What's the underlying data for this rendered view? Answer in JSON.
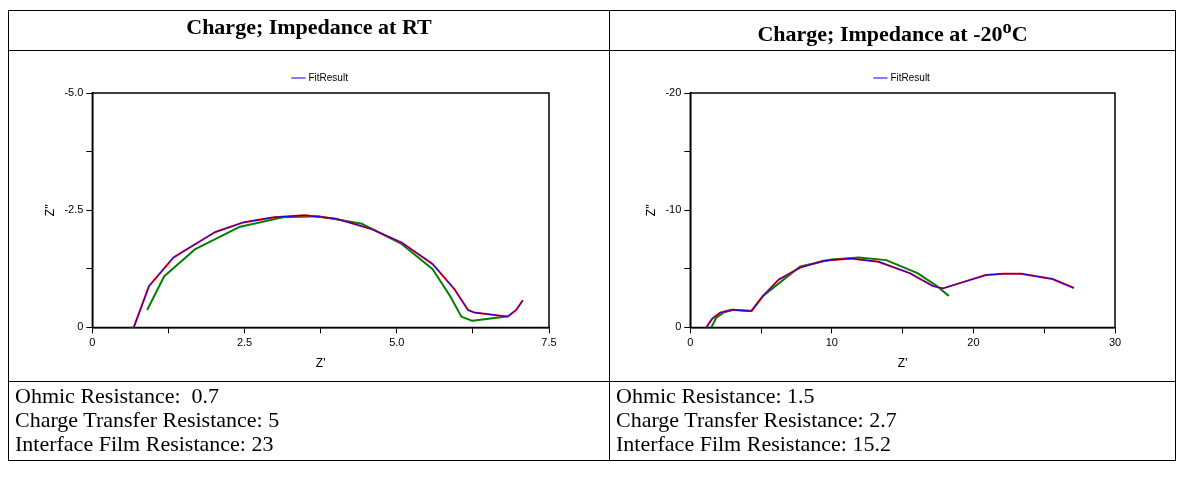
{
  "chart_data": [
    {
      "type": "line",
      "title": "Charge; Impedance at RT",
      "xlabel": "Z'",
      "ylabel": "Z''",
      "legend": "top",
      "marker": "none",
      "line_style": "solid",
      "xlim": [
        0,
        7.5
      ],
      "xticks": [
        0,
        {
          "value": 1.25,
          "label": null
        },
        2.5,
        {
          "value": 3.75,
          "label": null
        },
        {
          "value": 5,
          "label": "5.0"
        },
        {
          "value": 6.25,
          "label": null
        },
        7.5
      ],
      "ylim": [
        0,
        -5
      ],
      "yticks": [
        0,
        {
          "value": -1.25,
          "label": null
        },
        -2.5,
        {
          "value": -3.75,
          "label": null
        },
        {
          "value": -5,
          "label": "-5.0"
        }
      ],
      "series": [
        {
          "color": "#ff0000",
          "x": [
            0.68,
            0.93,
            1.33,
            2.01,
            2.48,
            2.99,
            3.49,
            4.0,
            4.58,
            5.08,
            5.59,
            5.95,
            6.17,
            6.27,
            6.82,
            6.96,
            7.07
          ],
          "values": [
            0,
            -0.88,
            -1.49,
            -2.03,
            -2.24,
            -2.35,
            -2.39,
            -2.32,
            -2.1,
            -1.81,
            -1.35,
            -0.81,
            -0.37,
            -0.32,
            -0.23,
            -0.37,
            -0.58
          ]
        },
        {
          "color": "#008000",
          "x": [
            0.9,
            1.18,
            1.69,
            2.41,
            3.13,
            3.71,
            4.43,
            5.08,
            5.59,
            5.88,
            6.06,
            6.24,
            6.74,
            6.82
          ],
          "values": [
            -0.37,
            -1.09,
            -1.67,
            -2.14,
            -2.35,
            -2.37,
            -2.21,
            -1.78,
            -1.24,
            -0.66,
            -0.23,
            -0.14,
            -0.22,
            -0.24
          ]
        },
        {
          "name": "FitResult",
          "color": "#0000ff",
          "x": [
            0.61,
            0.68,
            0.93,
            1.33,
            2.01,
            2.48,
            2.99,
            3.49,
            4.0,
            4.58,
            5.08,
            5.59,
            5.95,
            6.17,
            6.27,
            6.82,
            6.96,
            7.07
          ],
          "values": [
            0,
            0,
            -0.88,
            -1.49,
            -2.03,
            -2.24,
            -2.35,
            -2.39,
            -2.32,
            -2.1,
            -1.81,
            -1.35,
            -0.81,
            -0.37,
            -0.32,
            -0.23,
            -0.37,
            -0.58
          ]
        }
      ],
      "annotations": [
        "Ohmic Resistance:  0.7",
        "Charge Transfer Resistance: 5",
        "Interface Film Resistance: 23"
      ]
    },
    {
      "type": "line",
      "title": "Charge; Impedance at -20$^{o}$C",
      "xlabel": "Z'",
      "ylabel": "Z''",
      "legend": "top",
      "marker": "none",
      "line_style": "solid",
      "xlim": [
        0,
        30
      ],
      "xticks": [
        0,
        {
          "value": 5,
          "label": null
        },
        10,
        {
          "value": 15,
          "label": null
        },
        20,
        {
          "value": 25,
          "label": null
        },
        30
      ],
      "ylim": [
        0,
        -20
      ],
      "yticks": [
        0,
        {
          "value": -5,
          "label": null
        },
        -10,
        {
          "value": -15,
          "label": null
        },
        -20
      ],
      "series": [
        {
          "color": "#ff0000",
          "x": [
            1.13,
            1.55,
            2.1,
            2.93,
            3.62,
            4.31,
            5.14,
            6.24,
            7.76,
            9.42,
            11.35,
            13.29,
            15.5,
            17.15,
            17.85,
            19.09,
            20.88,
            22.13,
            23.37,
            25.58,
            27.1
          ],
          "values": [
            0,
            -0.75,
            -1.25,
            -1.5,
            -1.44,
            -1.39,
            -2.69,
            -4.08,
            -5.1,
            -5.69,
            -5.88,
            -5.6,
            -4.63,
            -3.52,
            -3.33,
            -3.8,
            -4.47,
            -4.58,
            -4.58,
            -4.13,
            -3.36
          ]
        },
        {
          "color": "#008000",
          "x": [
            1.49,
            1.82,
            2.38,
            3.07,
            4.31,
            5.14,
            7.76,
            9.97,
            11.91,
            13.84,
            16.05,
            17.43,
            18.26
          ],
          "values": [
            0,
            -0.8,
            -1.3,
            -1.5,
            -1.39,
            -2.69,
            -5.19,
            -5.8,
            -5.96,
            -5.74,
            -4.63,
            -3.52,
            -2.69
          ]
        },
        {
          "name": "FitResult",
          "color": "#0000ff",
          "x": [
            1.13,
            1.55,
            2.1,
            2.93,
            3.62,
            4.31,
            5.14,
            6.24,
            7.76,
            9.42,
            11.35,
            13.29,
            15.5,
            17.15,
            17.85,
            19.09,
            20.88,
            22.13,
            23.37,
            25.58,
            27.1
          ],
          "values": [
            0,
            -0.75,
            -1.25,
            -1.5,
            -1.44,
            -1.39,
            -2.69,
            -4.08,
            -5.1,
            -5.69,
            -5.88,
            -5.6,
            -4.63,
            -3.52,
            -3.33,
            -3.8,
            -4.47,
            -4.58,
            -4.58,
            -4.13,
            -3.36
          ]
        }
      ],
      "annotations": [
        "Ohmic Resistance: 1.5",
        "Charge Transfer Resistance: 2.7",
        "Interface Film Resistance: 15.2"
      ]
    }
  ]
}
